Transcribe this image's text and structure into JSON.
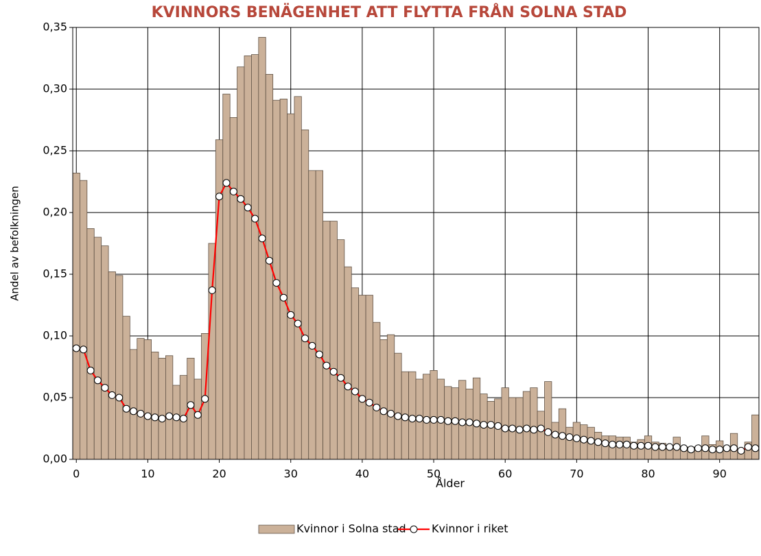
{
  "chart_data": {
    "type": "bar",
    "title": "KVINNORS BENÄGENHET ATT FLYTTA FRÅN SOLNA STAD",
    "x_label": "Ålder",
    "y_label": "Andel av befolkningen",
    "x": [
      0,
      1,
      2,
      3,
      4,
      5,
      6,
      7,
      8,
      9,
      10,
      11,
      12,
      13,
      14,
      15,
      16,
      17,
      18,
      19,
      20,
      21,
      22,
      23,
      24,
      25,
      26,
      27,
      28,
      29,
      30,
      31,
      32,
      33,
      34,
      35,
      36,
      37,
      38,
      39,
      40,
      41,
      42,
      43,
      44,
      45,
      46,
      47,
      48,
      49,
      50,
      51,
      52,
      53,
      54,
      55,
      56,
      57,
      58,
      59,
      60,
      61,
      62,
      63,
      64,
      65,
      66,
      67,
      68,
      69,
      70,
      71,
      72,
      73,
      74,
      75,
      76,
      77,
      78,
      79,
      80,
      81,
      82,
      83,
      84,
      85,
      86,
      87,
      88,
      89,
      90,
      91,
      92,
      93,
      94,
      95
    ],
    "series": [
      {
        "name": "Kvinnor i Solna stad",
        "type": "bar",
        "color": "#cbb199",
        "values": [
          0.232,
          0.226,
          0.187,
          0.18,
          0.173,
          0.152,
          0.149,
          0.116,
          0.089,
          0.098,
          0.097,
          0.087,
          0.082,
          0.084,
          0.06,
          0.068,
          0.082,
          0.065,
          0.102,
          0.175,
          0.259,
          0.296,
          0.277,
          0.318,
          0.327,
          0.328,
          0.342,
          0.312,
          0.291,
          0.292,
          0.28,
          0.294,
          0.267,
          0.234,
          0.234,
          0.193,
          0.193,
          0.178,
          0.156,
          0.139,
          0.133,
          0.133,
          0.111,
          0.097,
          0.101,
          0.086,
          0.071,
          0.071,
          0.065,
          0.069,
          0.072,
          0.065,
          0.059,
          0.058,
          0.064,
          0.057,
          0.066,
          0.053,
          0.047,
          0.049,
          0.058,
          0.05,
          0.05,
          0.055,
          0.058,
          0.039,
          0.063,
          0.03,
          0.041,
          0.026,
          0.03,
          0.028,
          0.026,
          0.022,
          0.019,
          0.019,
          0.018,
          0.018,
          0.014,
          0.016,
          0.019,
          0.014,
          0.013,
          0.011,
          0.018,
          0.01,
          0.01,
          0.01,
          0.019,
          0.012,
          0.015,
          0.007,
          0.021,
          0.008,
          0.014,
          0.036
        ]
      },
      {
        "name": "Kvinnor i riket",
        "type": "line",
        "color": "#ff0000",
        "values": [
          0.09,
          0.089,
          0.072,
          0.064,
          0.058,
          0.052,
          0.05,
          0.041,
          0.039,
          0.037,
          0.035,
          0.034,
          0.033,
          0.035,
          0.034,
          0.033,
          0.044,
          0.036,
          0.049,
          0.137,
          0.213,
          0.224,
          0.217,
          0.211,
          0.204,
          0.195,
          0.179,
          0.161,
          0.143,
          0.131,
          0.117,
          0.11,
          0.098,
          0.092,
          0.085,
          0.076,
          0.071,
          0.066,
          0.059,
          0.055,
          0.049,
          0.046,
          0.042,
          0.039,
          0.037,
          0.035,
          0.034,
          0.033,
          0.033,
          0.032,
          0.032,
          0.032,
          0.031,
          0.031,
          0.03,
          0.03,
          0.029,
          0.028,
          0.028,
          0.027,
          0.025,
          0.025,
          0.024,
          0.025,
          0.024,
          0.025,
          0.022,
          0.02,
          0.019,
          0.018,
          0.017,
          0.016,
          0.015,
          0.014,
          0.013,
          0.012,
          0.012,
          0.012,
          0.011,
          0.011,
          0.011,
          0.01,
          0.01,
          0.01,
          0.01,
          0.009,
          0.008,
          0.009,
          0.009,
          0.008,
          0.008,
          0.009,
          0.009,
          0.007,
          0.01,
          0.009
        ]
      }
    ],
    "xlim": [
      -0.5,
      95.5
    ],
    "xticks": [
      0,
      10,
      20,
      30,
      40,
      50,
      60,
      70,
      80,
      90
    ],
    "ylim": [
      0,
      0.35
    ],
    "yticks": [
      {
        "value": 0,
        "label": "0,00"
      },
      {
        "value": 0.05,
        "label": "0,05"
      },
      {
        "value": 0.1,
        "label": "0,10"
      },
      {
        "value": 0.15,
        "label": "0,15"
      },
      {
        "value": 0.2,
        "label": "0,20"
      },
      {
        "value": 0.25,
        "label": "0,25"
      },
      {
        "value": 0.3,
        "label": "0,30"
      },
      {
        "value": 0.35,
        "label": "0,35"
      }
    ],
    "grid": true,
    "legend": "bottom"
  }
}
